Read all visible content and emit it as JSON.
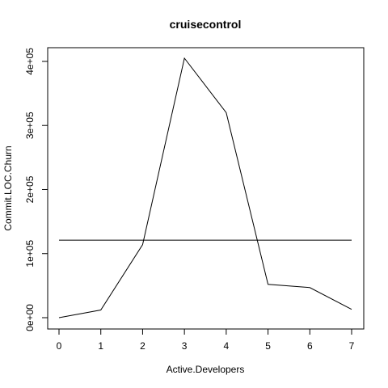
{
  "chart_data": {
    "type": "line",
    "title": "cruisecontrol",
    "xlabel": "Active.Developers",
    "ylabel": "Commit.LOC.Churn",
    "x": [
      0,
      1,
      2,
      3,
      4,
      5,
      6,
      7
    ],
    "xlim": [
      0,
      7
    ],
    "ylim": [
      0,
      405000
    ],
    "x_ticks": [
      0,
      1,
      2,
      3,
      4,
      5,
      6,
      7
    ],
    "x_tick_labels": [
      "0",
      "1",
      "2",
      "3",
      "4",
      "5",
      "6",
      "7"
    ],
    "y_ticks": [
      0,
      100000,
      200000,
      300000,
      400000
    ],
    "y_tick_labels": [
      "0e+00",
      "1e+05",
      "2e+05",
      "3e+05",
      "4e+05"
    ],
    "series": [
      {
        "values": [
          0,
          12000,
          114000,
          405000,
          320000,
          52000,
          47000,
          13000
        ]
      },
      {
        "values": [
          121000,
          121000,
          121000,
          121000,
          121000,
          121000,
          121000,
          121000
        ]
      }
    ],
    "grid": false,
    "legend": "none",
    "line_color": "#000000"
  }
}
